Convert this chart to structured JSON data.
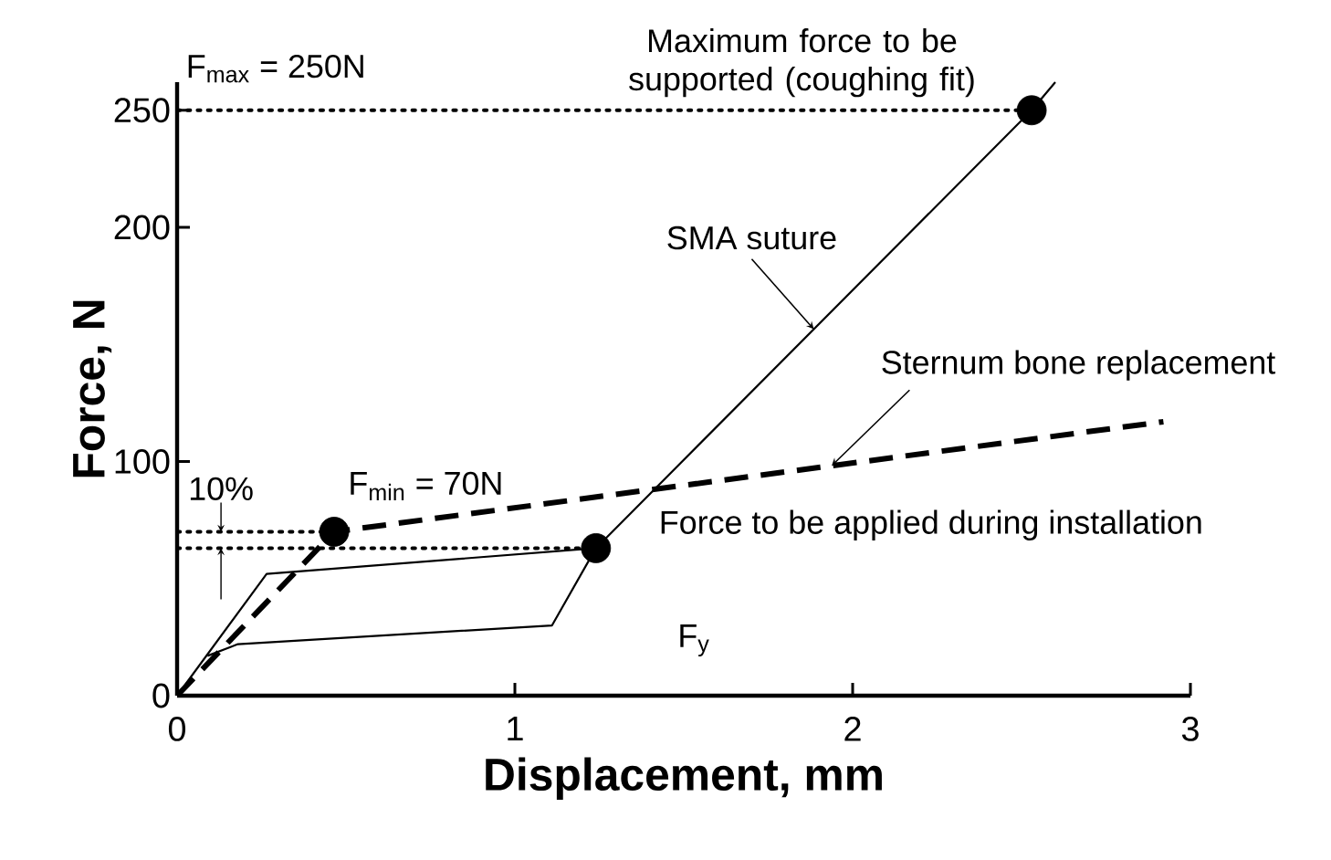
{
  "chart_data": {
    "type": "line",
    "xlabel": "Displacement, mm",
    "ylabel": "Force, N",
    "xlim": [
      0,
      3
    ],
    "xticks": [
      0,
      1,
      2,
      3
    ],
    "ylim": [
      0,
      262
    ],
    "yticks": [
      0,
      100,
      200,
      250
    ],
    "series": [
      {
        "name": "SMA suture",
        "color": "#000000",
        "line_style": "solid",
        "x": [
          0,
          0.265,
          1.24,
          2.53,
          2.6
        ],
        "values": [
          0,
          52,
          63,
          250,
          262
        ]
      },
      {
        "color": "#000000",
        "line_style": "solid",
        "x": [
          1.24,
          1.11,
          0.18,
          0.09
        ],
        "values": [
          63,
          30,
          22,
          17
        ]
      },
      {
        "name": "Sternum bone replacement",
        "color": "#000000",
        "line_style": "dashed",
        "x": [
          0,
          0.465,
          2.92
        ],
        "values": [
          0,
          70,
          117
        ]
      },
      {
        "type": "scatter",
        "color": "#000000",
        "marker": "circle",
        "x": [
          0.465,
          1.24,
          2.53
        ],
        "values": [
          70,
          63,
          250
        ]
      }
    ],
    "ref_lines": [
      {
        "axis": "y",
        "value": 250,
        "label": "Maximum force to be supported (coughing fit)",
        "line_style": "dotted"
      },
      {
        "axis": "y",
        "value": 70,
        "label": "F$_{min}$ = 70N",
        "line_style": "dotted"
      },
      {
        "axis": "y",
        "value": 63,
        "label": "Force to be applied during installation",
        "line_style": "dotted"
      }
    ],
    "annotations": [
      {
        "text": "F$_{max}$ = 250N",
        "x": 0.35,
        "y": 250
      },
      "F$_{y}$",
      {
        "text": "10%",
        "x": 0.13,
        "y": 70
      }
    ]
  }
}
